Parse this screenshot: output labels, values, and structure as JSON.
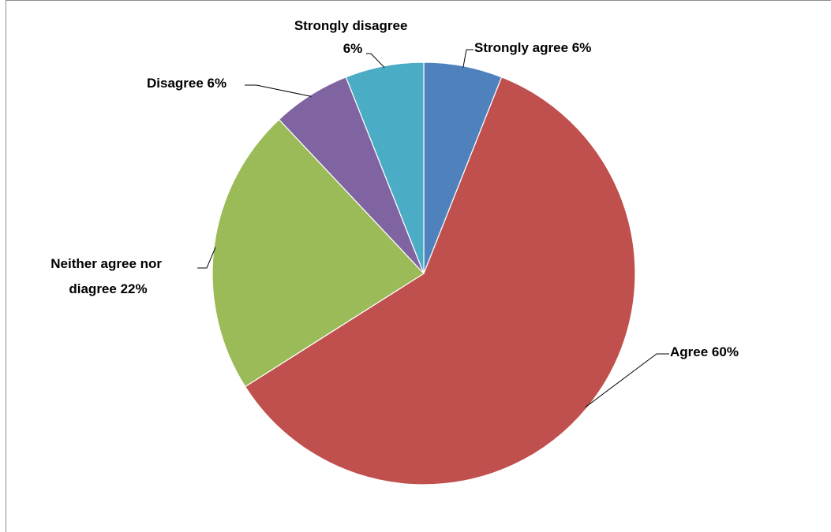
{
  "chart_data": {
    "type": "pie",
    "title": "",
    "slices": [
      {
        "label": "Strongly agree",
        "value": 6,
        "display": "Strongly agree 6%",
        "color": "#4f81bd"
      },
      {
        "label": "Agree",
        "value": 60,
        "display": "Agree 60%",
        "color": "#c0504d"
      },
      {
        "label": "Neither agree nor diagree",
        "value": 22,
        "display_lines": [
          "Neither agree nor",
          "diagree 22%"
        ],
        "color": "#9bbb59"
      },
      {
        "label": "Disagree",
        "value": 6,
        "display": "Disagree 6%",
        "color": "#8064a2"
      },
      {
        "label": "Strongly disagree",
        "value": 6,
        "display_lines": [
          "Strongly disagree",
          "6%"
        ],
        "color": "#4bacc6"
      }
    ],
    "start_angle": "12 o'clock",
    "direction": "clockwise",
    "legend": "none",
    "data_labels": "outside with leader lines"
  }
}
